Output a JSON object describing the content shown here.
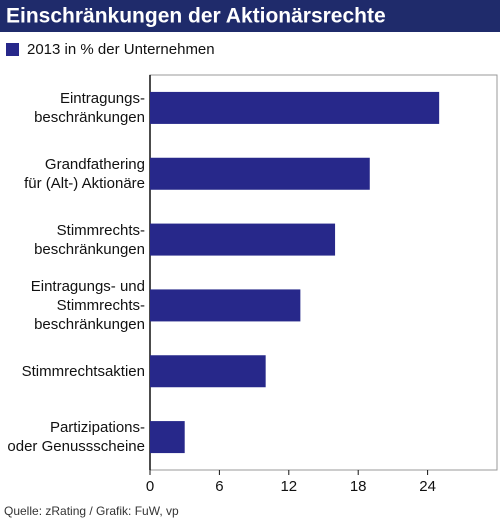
{
  "chart_data": {
    "type": "hbar",
    "title": "Einschränkungen der Aktionärsrechte",
    "categories": [
      "Eintragungs-\nbeschränkungen",
      "Grandfathering\nfür (Alt-) Aktionäre",
      "Stimmrechts-\nbeschränkungen",
      "Eintragungs- und\nStimmrechts-\nbeschränkungen",
      "Stimmrechtsaktien",
      "Partizipations-\noder Genussscheine"
    ],
    "series": [
      {
        "name": "2013 in % der Unternehmen",
        "color": "#27288a",
        "values": [
          25,
          19,
          16,
          13,
          10,
          3
        ]
      }
    ],
    "xlim": [
      0,
      30
    ],
    "xticks": [
      0,
      6,
      12,
      18,
      24
    ],
    "source": "Quelle: zRating / Grafik: FuW, vp"
  }
}
